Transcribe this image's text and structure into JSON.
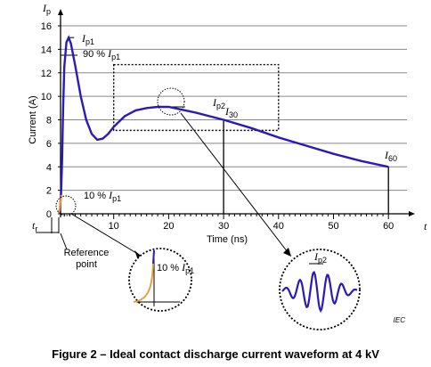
{
  "chart_data": {
    "type": "line",
    "ylabel": "Current  (A)",
    "ylabel_symbol": "I",
    "ylabel_symbol_sub": "p",
    "xlabel": "Time  (ns)",
    "xlabel_symbol": "t",
    "xlim": [
      -2.5,
      61
    ],
    "ylim": [
      0,
      16
    ],
    "yticks": [
      "0",
      "2",
      "4",
      "6",
      "8",
      "10",
      "12",
      "14",
      "16"
    ],
    "xticks": [
      "10",
      "20",
      "30",
      "40",
      "50",
      "60"
    ],
    "grid": true,
    "series": [
      {
        "x": [
          0,
          0.2,
          0.4,
          0.6,
          0.8,
          1.0,
          1.4,
          1.8,
          2.2,
          3.0,
          4.0,
          5.0,
          6.0,
          7.0,
          8.0,
          9.0,
          10.0,
          12.0,
          14.0,
          16.0,
          18.0,
          20.0,
          25.0,
          30.0,
          35.0,
          40.0,
          45.0,
          50.0,
          55.0,
          60.0
        ],
        "y": [
          0,
          0.4,
          1.5,
          4.5,
          9.0,
          12.5,
          14.6,
          15.0,
          14.5,
          12.6,
          10.0,
          8.0,
          6.8,
          6.3,
          6.4,
          6.8,
          7.4,
          8.3,
          8.8,
          9.0,
          9.1,
          9.1,
          8.6,
          8.0,
          7.3,
          6.5,
          5.8,
          5.1,
          4.5,
          4.0
        ]
      }
    ],
    "annotations": {
      "ip1": "I",
      "ip1_sub": "p1",
      "pct90": "90 %",
      "ip1_b": "I",
      "ip1_b_sub": "p1",
      "ip2": "I",
      "ip2_sub": "p2",
      "i30": "I",
      "i30_sub": "30",
      "i60": "I",
      "i60_sub": "60",
      "pct10": "10 %",
      "ip1_c": "I",
      "ip1_c_sub": "p1",
      "tr": "t",
      "tr_sub": "r",
      "ref_point": [
        "Reference",
        "point"
      ],
      "zoom1_pct": "10 %",
      "zoom1_i": "I",
      "zoom1_sub": "p1",
      "zoom2_i": "I",
      "zoom2_sub": "p2"
    },
    "caption": "Figure 2 – Ideal contact discharge current waveform at 4 kV",
    "watermark": "IEC"
  },
  "colors": {
    "curve": "#2a1bb8",
    "rise": "#e8a13a",
    "grid": "#888888",
    "axis": "#000000"
  }
}
